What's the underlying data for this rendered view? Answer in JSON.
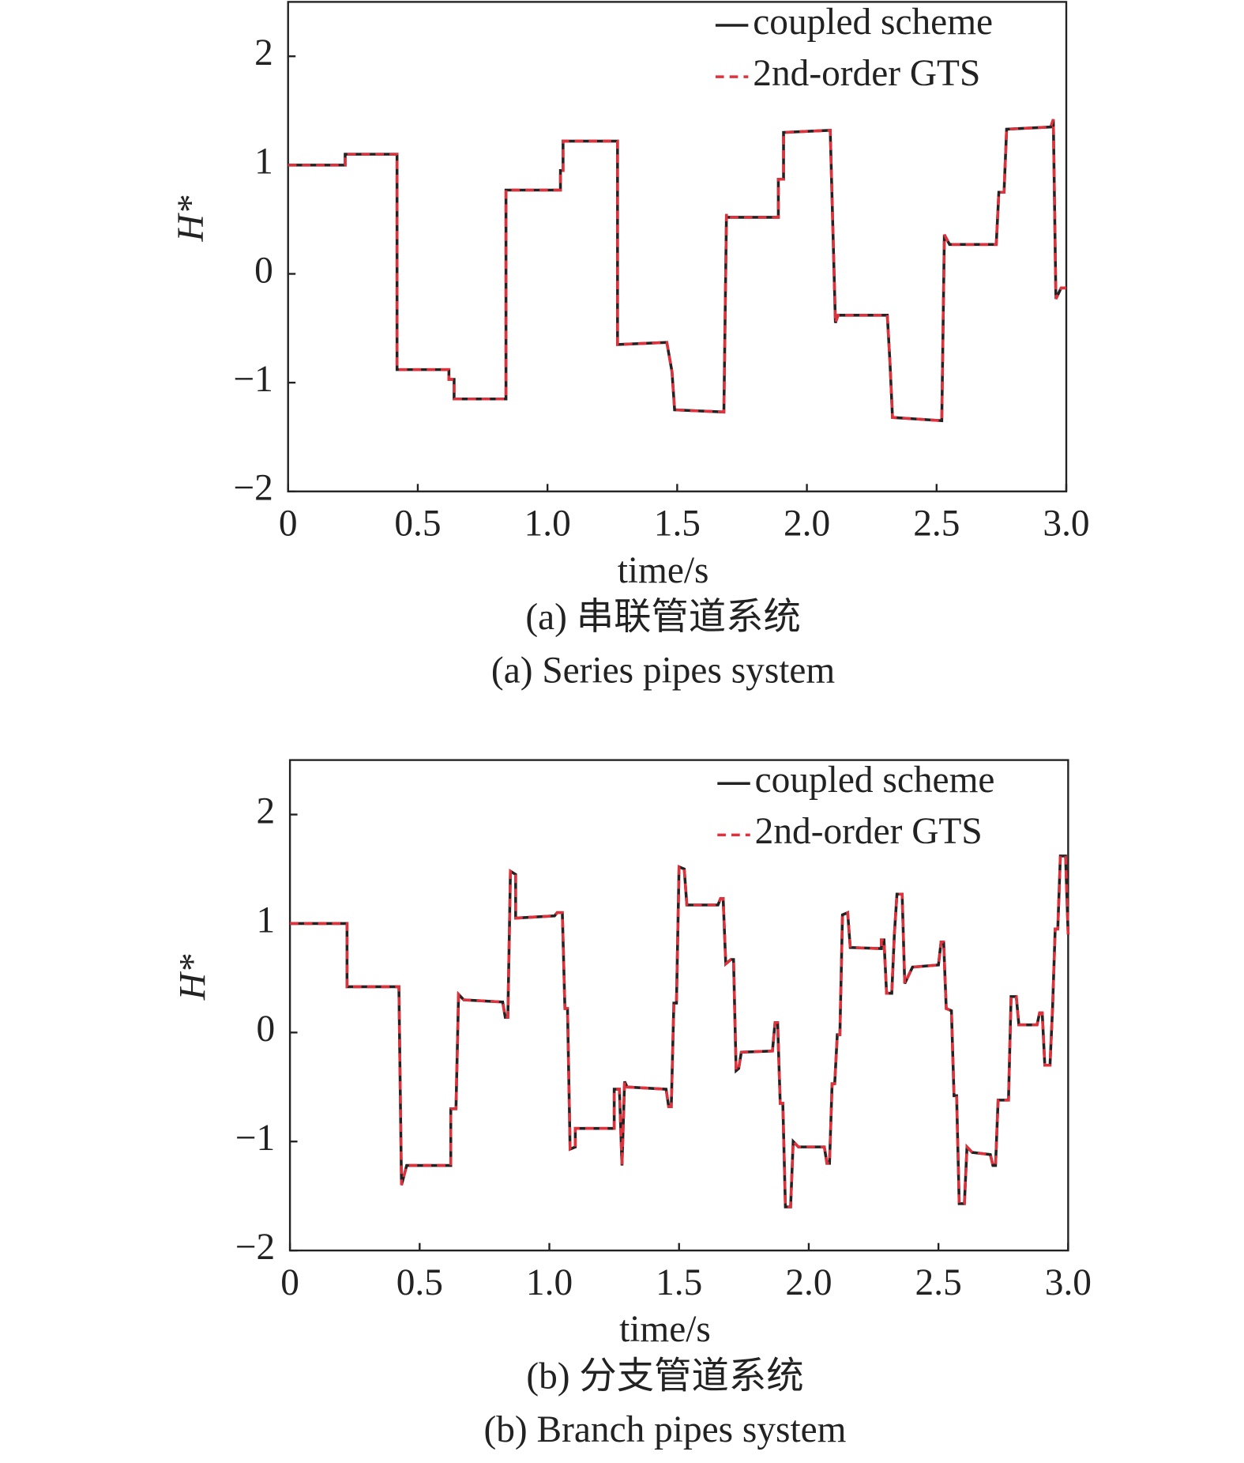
{
  "chart_data": [
    {
      "type": "line",
      "xlabel": "time/s",
      "ylabel": "H*",
      "caption": "(a) 串联管道系统",
      "caption_en": "(a) Series pipes system",
      "xlim": [
        0,
        3
      ],
      "ylim": [
        -2,
        2.5
      ],
      "xticks": [
        0,
        0.5,
        {
          "value": 1,
          "label": "1.0"
        },
        1.5,
        {
          "value": 2,
          "label": "2.0"
        },
        2.5,
        {
          "value": 3,
          "label": "3.0"
        }
      ],
      "yticks": [
        {
          "value": -2,
          "label": "−2"
        },
        {
          "value": -1,
          "label": "−1"
        },
        0,
        1,
        2
      ],
      "legend": "upper right",
      "x": [
        0,
        0.22,
        0.22,
        0.42,
        0.42,
        0.62,
        0.62,
        0.64,
        0.64,
        0.84,
        0.84,
        1.05,
        1.05,
        1.06,
        1.06,
        1.27,
        1.27,
        1.46,
        1.48,
        1.49,
        1.68,
        1.69,
        1.69,
        1.89,
        1.89,
        1.91,
        1.91,
        2.09,
        2.11,
        2.12,
        2.31,
        2.32,
        2.33,
        2.52,
        2.53,
        2.55,
        2.73,
        2.74,
        2.76,
        2.77,
        2.94,
        2.95,
        2.96,
        2.98,
        3.0
      ],
      "series": [
        {
          "name": "coupled scheme",
          "color": "#222222",
          "dash": false,
          "values": [
            1.0,
            1.0,
            1.1,
            1.1,
            -0.88,
            -0.88,
            -0.97,
            -0.97,
            -1.15,
            -1.15,
            0.77,
            0.77,
            0.95,
            0.95,
            1.22,
            1.22,
            -0.65,
            -0.63,
            -0.9,
            -1.25,
            -1.27,
            0.55,
            0.52,
            0.52,
            0.87,
            0.87,
            1.3,
            1.32,
            -0.45,
            -0.38,
            -0.38,
            -0.8,
            -1.32,
            -1.35,
            0.36,
            0.27,
            0.27,
            0.75,
            0.75,
            1.33,
            1.35,
            1.42,
            -0.23,
            -0.13,
            -0.13
          ]
        },
        {
          "name": "2nd-order GTS",
          "color": "#e0323c",
          "dash": true,
          "values": [
            1.0,
            1.0,
            1.1,
            1.1,
            -0.88,
            -0.88,
            -0.97,
            -0.97,
            -1.15,
            -1.15,
            0.77,
            0.77,
            0.95,
            0.95,
            1.22,
            1.22,
            -0.65,
            -0.63,
            -0.9,
            -1.25,
            -1.27,
            0.55,
            0.52,
            0.52,
            0.87,
            0.87,
            1.3,
            1.32,
            -0.45,
            -0.38,
            -0.38,
            -0.8,
            -1.32,
            -1.35,
            0.36,
            0.27,
            0.27,
            0.75,
            0.75,
            1.33,
            1.35,
            1.42,
            -0.23,
            -0.13,
            -0.13
          ]
        }
      ]
    },
    {
      "type": "line",
      "xlabel": "time/s",
      "ylabel": "H*",
      "caption": "(b) 分支管道系统",
      "caption_en": "(b) Branch pipes system",
      "xlim": [
        0,
        3
      ],
      "ylim": [
        -2,
        2.5
      ],
      "xticks": [
        0,
        0.5,
        {
          "value": 1,
          "label": "1.0"
        },
        1.5,
        {
          "value": 2,
          "label": "2.0"
        },
        2.5,
        {
          "value": 3,
          "label": "3.0"
        }
      ],
      "yticks": [
        {
          "value": -2,
          "label": "−2"
        },
        {
          "value": -1,
          "label": "−1"
        },
        0,
        1,
        2
      ],
      "legend": "upper right",
      "x": [
        0,
        0.22,
        0.22,
        0.42,
        0.43,
        0.45,
        0.62,
        0.62,
        0.64,
        0.65,
        0.67,
        0.82,
        0.83,
        0.84,
        0.85,
        0.87,
        0.87,
        1.02,
        1.03,
        1.05,
        1.06,
        1.07,
        1.08,
        1.1,
        1.1,
        1.25,
        1.25,
        1.27,
        1.28,
        1.29,
        1.3,
        1.45,
        1.46,
        1.47,
        1.48,
        1.49,
        1.5,
        1.52,
        1.53,
        1.65,
        1.66,
        1.67,
        1.68,
        1.7,
        1.71,
        1.72,
        1.73,
        1.74,
        1.86,
        1.87,
        1.88,
        1.89,
        1.9,
        1.91,
        1.93,
        1.94,
        1.96,
        2.06,
        2.07,
        2.08,
        2.09,
        2.1,
        2.11,
        2.12,
        2.13,
        2.15,
        2.16,
        2.28,
        2.28,
        2.29,
        2.3,
        2.32,
        2.33,
        2.34,
        2.36,
        2.37,
        2.4,
        2.5,
        2.51,
        2.52,
        2.53,
        2.55,
        2.56,
        2.57,
        2.58,
        2.6,
        2.61,
        2.63,
        2.7,
        2.71,
        2.72,
        2.73,
        2.77,
        2.78,
        2.8,
        2.81,
        2.88,
        2.89,
        2.9,
        2.91,
        2.93,
        2.94,
        2.95,
        2.96,
        2.97,
        2.99,
        3.0
      ],
      "series": [
        {
          "name": "coupled scheme",
          "color": "#222222",
          "dash": false,
          "values": [
            1.0,
            1.0,
            0.42,
            0.42,
            -1.4,
            -1.22,
            -1.22,
            -0.7,
            -0.7,
            0.35,
            0.3,
            0.28,
            0.14,
            0.14,
            1.48,
            1.45,
            1.05,
            1.07,
            1.1,
            1.1,
            0.22,
            0.22,
            -1.07,
            -1.05,
            -0.88,
            -0.88,
            -0.52,
            -0.52,
            -1.22,
            -0.45,
            -0.5,
            -0.52,
            -0.68,
            -0.68,
            0.27,
            0.27,
            1.52,
            1.5,
            1.17,
            1.17,
            1.23,
            1.23,
            0.63,
            0.67,
            0.67,
            -0.35,
            -0.33,
            -0.18,
            -0.17,
            0.09,
            0.09,
            -0.65,
            -0.65,
            -1.6,
            -1.6,
            -1.0,
            -1.05,
            -1.05,
            -1.2,
            -1.2,
            -0.47,
            -0.47,
            -0.02,
            -0.02,
            1.08,
            1.1,
            0.78,
            0.77,
            0.85,
            0.85,
            0.36,
            0.36,
            0.9,
            1.27,
            1.27,
            0.45,
            0.6,
            0.62,
            0.83,
            0.83,
            0.22,
            0.2,
            -0.58,
            -0.58,
            -1.57,
            -1.57,
            -1.05,
            -1.1,
            -1.12,
            -1.22,
            -1.22,
            -0.62,
            -0.62,
            0.33,
            0.33,
            0.07,
            0.07,
            0.18,
            0.18,
            -0.3,
            -0.3,
            0.23,
            0.95,
            0.95,
            1.62,
            1.62,
            0.9
          ]
        },
        {
          "name": "2nd-order GTS",
          "color": "#e0323c",
          "dash": true,
          "values": [
            1.0,
            1.0,
            0.42,
            0.42,
            -1.4,
            -1.22,
            -1.22,
            -0.7,
            -0.7,
            0.35,
            0.3,
            0.28,
            0.14,
            0.14,
            1.48,
            1.45,
            1.05,
            1.07,
            1.1,
            1.1,
            0.22,
            0.22,
            -1.07,
            -1.05,
            -0.88,
            -0.88,
            -0.52,
            -0.52,
            -1.22,
            -0.45,
            -0.5,
            -0.52,
            -0.68,
            -0.68,
            0.27,
            0.27,
            1.52,
            1.5,
            1.17,
            1.17,
            1.23,
            1.23,
            0.63,
            0.67,
            0.67,
            -0.35,
            -0.33,
            -0.18,
            -0.17,
            0.09,
            0.09,
            -0.65,
            -0.65,
            -1.6,
            -1.6,
            -1.0,
            -1.05,
            -1.05,
            -1.2,
            -1.2,
            -0.47,
            -0.47,
            -0.02,
            -0.02,
            1.08,
            1.1,
            0.78,
            0.77,
            0.85,
            0.85,
            0.36,
            0.36,
            0.9,
            1.27,
            1.27,
            0.45,
            0.6,
            0.62,
            0.83,
            0.83,
            0.22,
            0.2,
            -0.58,
            -0.58,
            -1.57,
            -1.57,
            -1.05,
            -1.1,
            -1.12,
            -1.22,
            -1.22,
            -0.62,
            -0.62,
            0.33,
            0.33,
            0.07,
            0.07,
            0.18,
            0.18,
            -0.3,
            -0.3,
            0.23,
            0.95,
            0.95,
            1.62,
            1.62,
            0.9
          ]
        }
      ]
    }
  ]
}
